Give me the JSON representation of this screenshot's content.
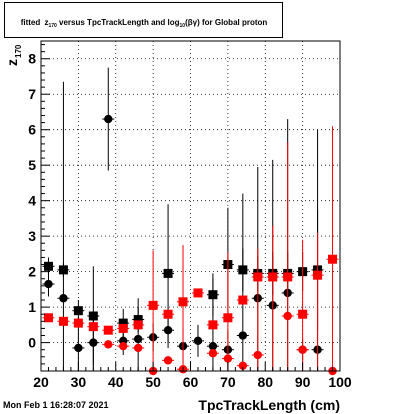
{
  "chart_data": {
    "type": "scatter",
    "title": {
      "pre": "fitted ",
      "z": "z",
      "z_sub": "170",
      "mid": " versus TpcTrackLength and log",
      "log_sub": "10",
      "post": "(βγ) for Global proton"
    },
    "xlabel": "TpcTrackLength (cm)",
    "ylabel": "z",
    "ylabel_sub": "170",
    "xlim": [
      20,
      100
    ],
    "ylim": [
      -0.8,
      8.5
    ],
    "xticks": [
      20,
      30,
      40,
      50,
      60,
      70,
      80,
      90,
      100
    ],
    "yticks": [
      0,
      1,
      2,
      3,
      4,
      5,
      6,
      7,
      8
    ],
    "grid": true,
    "x": [
      22,
      26,
      30,
      34,
      38,
      42,
      46,
      50,
      54,
      58,
      62,
      66,
      70,
      74,
      78,
      82,
      86,
      90,
      94,
      98
    ],
    "series": [
      {
        "color": "#000000",
        "marker": "square",
        "values": [
          2.15,
          2.05,
          0.9,
          0.75,
          null,
          0.55,
          0.65,
          null,
          1.95,
          null,
          null,
          1.35,
          2.2,
          2.05,
          1.95,
          1.95,
          1.95,
          2.0,
          2.05,
          null
        ],
        "errors": [
          0.25,
          0.2,
          0.3,
          1.4,
          null,
          0.4,
          0.35,
          null,
          1.95,
          null,
          null,
          0.6,
          1.6,
          0.6,
          0.5,
          0.6,
          0.6,
          0.55,
          1.7,
          null
        ]
      },
      {
        "color": "#000000",
        "marker": "circle",
        "values": [
          1.65,
          1.25,
          -0.15,
          0.0,
          6.3,
          0.05,
          0.1,
          0.15,
          0.35,
          -0.1,
          0.05,
          -0.1,
          -0.2,
          0.2,
          1.25,
          1.05,
          1.4,
          -0.2,
          -0.2,
          null
        ],
        "errors": [
          0.35,
          6.1,
          0.85,
          0.8,
          1.45,
          0.4,
          1.15,
          0.4,
          0.5,
          0.5,
          0.45,
          1.9,
          0.55,
          4.0,
          3.7,
          4.1,
          4.9,
          0.3,
          6.2,
          null
        ]
      },
      {
        "color": "#ff0000",
        "marker": "square",
        "values": [
          0.7,
          0.6,
          0.55,
          0.45,
          0.35,
          0.4,
          0.5,
          1.05,
          0.8,
          1.15,
          1.4,
          0.5,
          0.7,
          1.2,
          1.85,
          1.85,
          1.85,
          0.8,
          1.9,
          2.35
        ]
      },
      {
        "color": "#ff0000",
        "marker": "circle",
        "values": [
          null,
          null,
          null,
          null,
          -0.05,
          -0.1,
          -0.15,
          -0.8,
          -0.5,
          -0.75,
          null,
          -0.3,
          -0.45,
          -0.65,
          -0.35,
          null,
          0.75,
          -0.2,
          null,
          -0.8
        ],
        "errors": [
          null,
          null,
          null,
          null,
          null,
          null,
          null,
          3.4,
          null,
          3.5,
          null,
          null,
          3.0,
          null,
          3.0,
          3.3,
          4.9,
          3.1,
          3.1,
          6.9
        ]
      }
    ]
  },
  "footer": {
    "date": "Mon Feb  1 16:28:07 2021"
  }
}
